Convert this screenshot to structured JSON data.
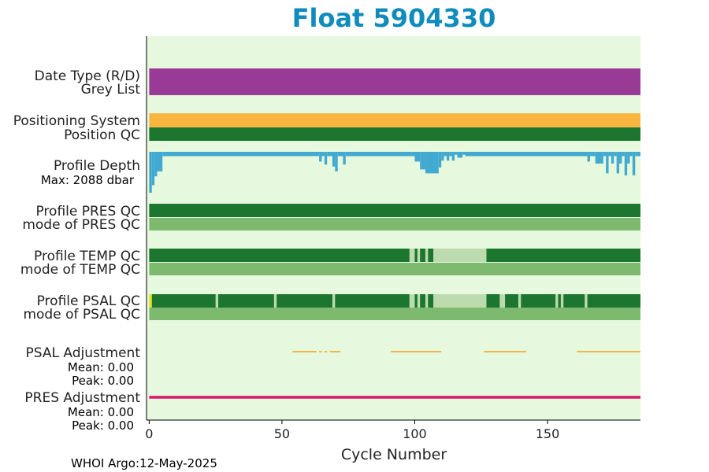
{
  "colors": {
    "title": "#108cbc",
    "plot_background": "#e6f8de",
    "data_type": "#983a96",
    "positioning_system": "#f8b640",
    "qc_good": "#1c762f",
    "qc_mode": "#7dba6f",
    "qc_light": "#bcdcaf",
    "qc_flag": "#f0e81e",
    "depth": "#42aad0",
    "max_depth_text": "#108cbc",
    "psal_adjustment": "#f3a218",
    "pres_adjustment": "#d9166f"
  },
  "chart_data": {
    "type": "bar",
    "title": "Float 5904330",
    "xlabel": "Cycle Number",
    "xlim": [
      -1,
      185
    ],
    "x_ticks": [
      0,
      50,
      100,
      150
    ],
    "x_tick_labels": [
      "0",
      "50",
      "100",
      "150"
    ],
    "grid": false,
    "footer": "WHOI Argo:12-May-2025",
    "rows": [
      {
        "label": "Date Type (R/D)",
        "color_key": "data_type"
      },
      {
        "label": "Grey List",
        "color_key": "data_type"
      },
      {
        "label": "Positioning System",
        "color_key": "positioning_system"
      },
      {
        "label": "Position QC",
        "color_key": "qc_good"
      },
      {
        "label": "Profile Depth",
        "sublabel": "Max: 2088 dbar",
        "max_depth_dbar": 2088
      },
      {
        "label": "Profile PRES QC",
        "color_key": "qc_good"
      },
      {
        "label": "mode of PRES QC",
        "color_key": "qc_mode"
      },
      {
        "label": "Profile TEMP QC",
        "color_key": "qc_good",
        "overrides": [
          {
            "start": 98,
            "end": 100,
            "color_key": "qc_light"
          },
          {
            "start": 101,
            "end": 102,
            "color_key": "qc_light"
          },
          {
            "start": 104,
            "end": 105,
            "color_key": "qc_light"
          },
          {
            "start": 107,
            "end": 127,
            "color_key": "qc_light"
          }
        ]
      },
      {
        "label": "mode of TEMP QC",
        "color_key": "qc_mode"
      },
      {
        "label": "Profile PSAL QC",
        "color_key": "qc_good",
        "overrides": [
          {
            "start": 0,
            "end": 1,
            "color_key": "qc_flag"
          },
          {
            "start": 25,
            "end": 26,
            "color_key": "qc_light"
          },
          {
            "start": 47,
            "end": 48,
            "color_key": "qc_light"
          },
          {
            "start": 69,
            "end": 70,
            "color_key": "qc_light"
          },
          {
            "start": 98,
            "end": 100,
            "color_key": "qc_light"
          },
          {
            "start": 101,
            "end": 102,
            "color_key": "qc_light"
          },
          {
            "start": 104,
            "end": 105,
            "color_key": "qc_light"
          },
          {
            "start": 107,
            "end": 127,
            "color_key": "qc_light"
          },
          {
            "start": 132,
            "end": 134,
            "color_key": "qc_light"
          },
          {
            "start": 139,
            "end": 140,
            "color_key": "qc_light"
          },
          {
            "start": 153,
            "end": 154,
            "color_key": "qc_light"
          },
          {
            "start": 155,
            "end": 156,
            "color_key": "qc_light"
          },
          {
            "start": 164,
            "end": 165,
            "color_key": "qc_light"
          }
        ]
      },
      {
        "label": "mode of PSAL QC",
        "color_key": "qc_mode"
      },
      {
        "label": "PSAL Adjustment",
        "mean_label": "Mean: 0.00",
        "peak_label": "Peak: 0.00",
        "segments": [
          [
            54,
            63
          ],
          [
            64,
            65
          ],
          [
            66,
            67
          ],
          [
            68,
            72
          ],
          [
            91,
            110
          ],
          [
            126,
            142
          ],
          [
            161,
            185
          ]
        ]
      },
      {
        "label": "PRES Adjustment",
        "mean_label": "Mean: 0.00",
        "peak_label": "Peak: 0.00",
        "segments": [
          [
            0,
            185
          ]
        ]
      }
    ],
    "profile_depth_steps": [
      {
        "start": 0,
        "end": 1,
        "dbar": 2088
      },
      {
        "start": 1,
        "end": 2,
        "dbar": 1700
      },
      {
        "start": 2,
        "end": 3,
        "dbar": 1250
      },
      {
        "start": 3,
        "end": 5,
        "dbar": 1000
      },
      {
        "start": 5,
        "end": 64,
        "dbar": 220
      },
      {
        "start": 64,
        "end": 65,
        "dbar": 500
      },
      {
        "start": 65,
        "end": 66,
        "dbar": 220
      },
      {
        "start": 66,
        "end": 67,
        "dbar": 650
      },
      {
        "start": 67,
        "end": 69,
        "dbar": 220
      },
      {
        "start": 69,
        "end": 70,
        "dbar": 750
      },
      {
        "start": 70,
        "end": 71,
        "dbar": 1000
      },
      {
        "start": 71,
        "end": 73,
        "dbar": 220
      },
      {
        "start": 73,
        "end": 74,
        "dbar": 650
      },
      {
        "start": 74,
        "end": 100,
        "dbar": 220
      },
      {
        "start": 100,
        "end": 102,
        "dbar": 500
      },
      {
        "start": 102,
        "end": 104,
        "dbar": 900
      },
      {
        "start": 104,
        "end": 109,
        "dbar": 1100
      },
      {
        "start": 109,
        "end": 110,
        "dbar": 800
      },
      {
        "start": 110,
        "end": 111,
        "dbar": 450
      },
      {
        "start": 111,
        "end": 112,
        "dbar": 220
      },
      {
        "start": 112,
        "end": 113,
        "dbar": 450
      },
      {
        "start": 113,
        "end": 114,
        "dbar": 220
      },
      {
        "start": 114,
        "end": 115,
        "dbar": 450
      },
      {
        "start": 115,
        "end": 116,
        "dbar": 150
      },
      {
        "start": 116,
        "end": 118,
        "dbar": 300
      },
      {
        "start": 118,
        "end": 119,
        "dbar": 150
      },
      {
        "start": 119,
        "end": 165,
        "dbar": 220
      },
      {
        "start": 165,
        "end": 166,
        "dbar": 500
      },
      {
        "start": 166,
        "end": 168,
        "dbar": 220
      },
      {
        "start": 168,
        "end": 171,
        "dbar": 600
      },
      {
        "start": 171,
        "end": 172,
        "dbar": 220
      },
      {
        "start": 172,
        "end": 173,
        "dbar": 1100
      },
      {
        "start": 173,
        "end": 174,
        "dbar": 220
      },
      {
        "start": 174,
        "end": 175,
        "dbar": 600
      },
      {
        "start": 175,
        "end": 176,
        "dbar": 220
      },
      {
        "start": 176,
        "end": 177,
        "dbar": 1100
      },
      {
        "start": 177,
        "end": 178,
        "dbar": 600
      },
      {
        "start": 178,
        "end": 179,
        "dbar": 220
      },
      {
        "start": 179,
        "end": 180,
        "dbar": 1200
      },
      {
        "start": 180,
        "end": 181,
        "dbar": 600
      },
      {
        "start": 181,
        "end": 182,
        "dbar": 220
      },
      {
        "start": 182,
        "end": 183,
        "dbar": 1200
      },
      {
        "start": 183,
        "end": 185,
        "dbar": 220
      }
    ]
  }
}
